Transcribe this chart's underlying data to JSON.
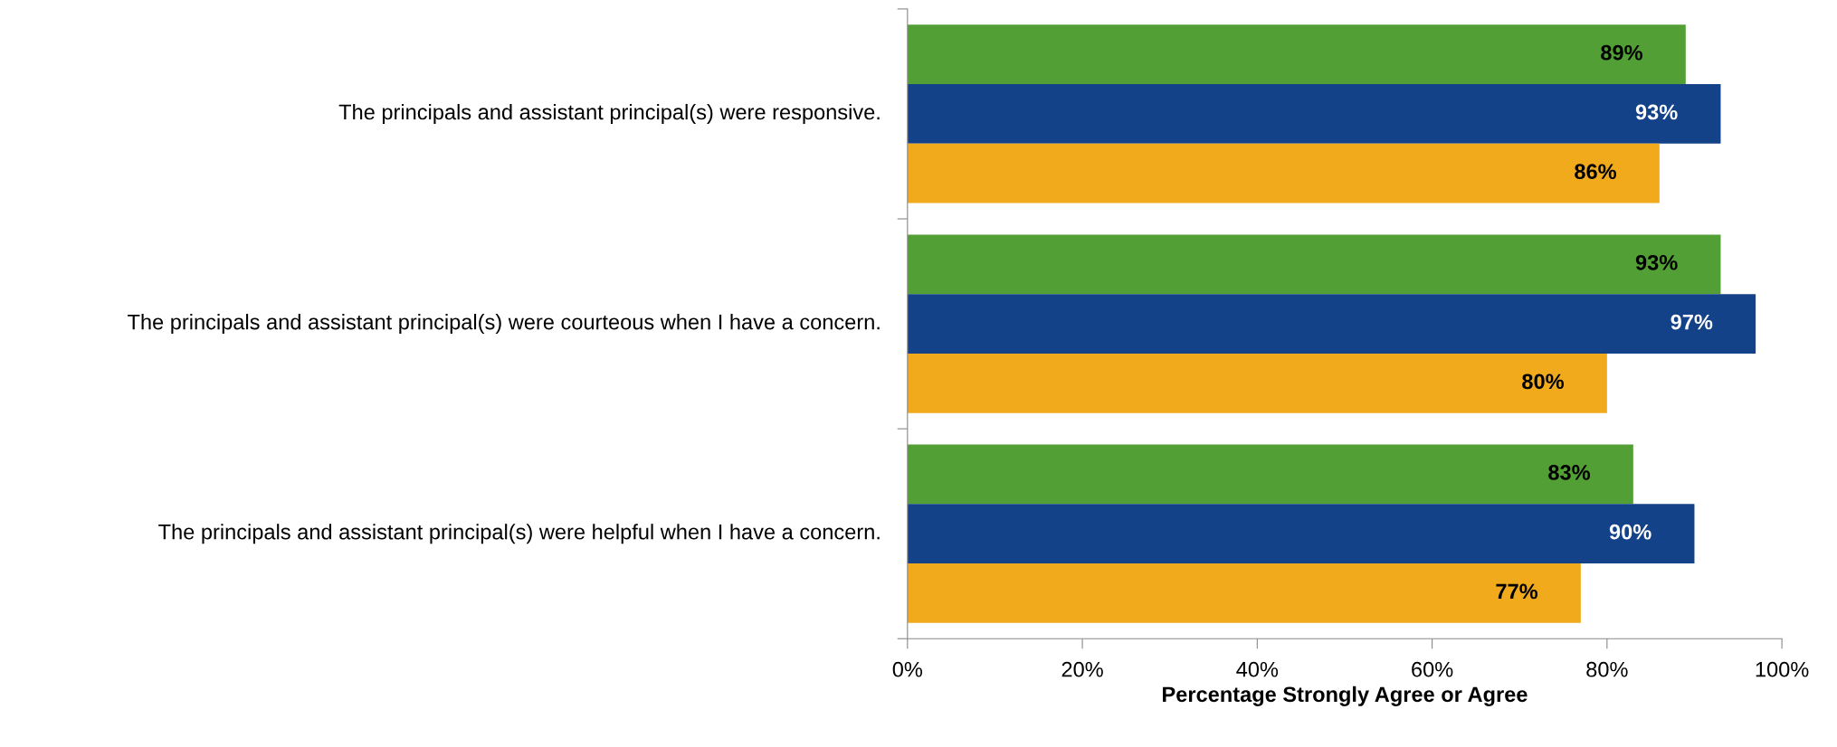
{
  "chart_data": {
    "type": "bar",
    "orientation": "horizontal",
    "categories": [
      "The principals and assistant principal(s) were responsive.",
      "The principals and assistant principal(s) were courteous when I have a concern.",
      "The principals and assistant principal(s) were helpful when I have a concern."
    ],
    "series": [
      {
        "color": "#52a035",
        "values": [
          89,
          93,
          83
        ],
        "value_labels": [
          "89%",
          "93%",
          "83%"
        ]
      },
      {
        "color": "#134289",
        "values": [
          93,
          97,
          90
        ],
        "value_labels": [
          "93%",
          "97%",
          "90%"
        ]
      },
      {
        "color": "#f0aa1c",
        "values": [
          86,
          80,
          77
        ],
        "value_labels": [
          "86%",
          "80%",
          "77%"
        ]
      }
    ],
    "xlim": [
      0,
      100
    ],
    "xticks": [
      {
        "value": 0,
        "label": "0%"
      },
      {
        "value": 20,
        "label": "20%"
      },
      {
        "value": 40,
        "label": "40%"
      },
      {
        "value": 60,
        "label": "60%"
      },
      {
        "value": 80,
        "label": "80%"
      },
      {
        "value": 100,
        "label": "100%"
      }
    ],
    "xlabel": "Percentage Strongly Agree or Agree",
    "grid": false,
    "legend": false
  }
}
